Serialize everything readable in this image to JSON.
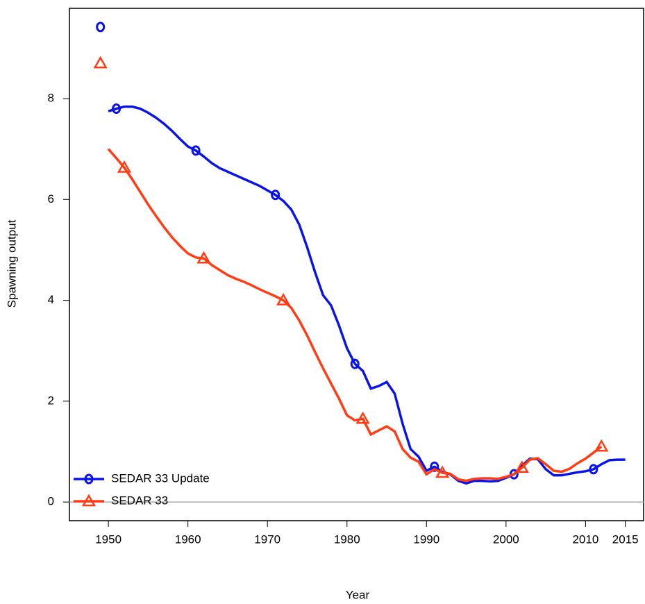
{
  "chart_data": {
    "type": "line",
    "xlabel": "Year",
    "ylabel": "Spawning output",
    "x": [
      1950,
      1951,
      1952,
      1953,
      1954,
      1955,
      1956,
      1957,
      1958,
      1959,
      1960,
      1961,
      1962,
      1963,
      1964,
      1965,
      1966,
      1967,
      1968,
      1969,
      1970,
      1971,
      1972,
      1973,
      1974,
      1975,
      1976,
      1977,
      1978,
      1979,
      1980,
      1981,
      1982,
      1983,
      1984,
      1985,
      1986,
      1987,
      1988,
      1989,
      1990,
      1991,
      1992,
      1993,
      1994,
      1995,
      1996,
      1997,
      1998,
      1999,
      2000,
      2001,
      2002,
      2003,
      2004,
      2005,
      2006,
      2007,
      2008,
      2009,
      2010,
      2011,
      2012,
      2013,
      2014,
      2015
    ],
    "initial_x": 1949,
    "series": [
      {
        "name": "SEDAR 33 Update",
        "color": "#0a14e6",
        "marker": "circle",
        "initial": 9.42,
        "values": [
          7.75,
          7.8,
          7.84,
          7.84,
          7.8,
          7.72,
          7.62,
          7.5,
          7.36,
          7.2,
          7.05,
          6.97,
          6.85,
          6.72,
          6.62,
          6.55,
          6.48,
          6.41,
          6.34,
          6.27,
          6.18,
          6.09,
          5.97,
          5.8,
          5.5,
          5.05,
          4.55,
          4.1,
          3.9,
          3.5,
          3.05,
          2.74,
          2.6,
          2.25,
          2.3,
          2.38,
          2.15,
          1.55,
          1.05,
          0.9,
          0.62,
          0.7,
          0.6,
          0.55,
          0.42,
          0.37,
          0.42,
          0.42,
          0.41,
          0.42,
          0.48,
          0.55,
          0.72,
          0.86,
          0.85,
          0.65,
          0.53,
          0.53,
          0.56,
          0.59,
          0.61,
          0.65,
          0.75,
          0.83,
          0.84,
          0.84
        ]
      },
      {
        "name": "SEDAR 33",
        "color": "#ff3c14",
        "marker": "triangle",
        "initial": 8.7,
        "values": [
          7.0,
          6.82,
          6.63,
          6.4,
          6.15,
          5.9,
          5.67,
          5.45,
          5.25,
          5.08,
          4.93,
          4.85,
          4.83,
          4.7,
          4.6,
          4.5,
          4.43,
          4.37,
          4.3,
          4.22,
          4.15,
          4.08,
          4.0,
          3.85,
          3.6,
          3.3,
          2.97,
          2.65,
          2.35,
          2.05,
          1.72,
          1.62,
          1.65,
          1.34,
          1.42,
          1.5,
          1.4,
          1.05,
          0.88,
          0.8,
          0.55,
          0.65,
          0.58,
          0.56,
          0.45,
          0.42,
          0.46,
          0.47,
          0.47,
          0.46,
          0.5,
          0.55,
          0.68,
          0.84,
          0.87,
          0.75,
          0.62,
          0.6,
          0.66,
          0.77,
          0.86,
          0.98,
          1.1,
          null,
          null,
          null
        ]
      }
    ],
    "xlim": [
      1945.1,
      2017.3
    ],
    "ylim": [
      -0.37,
      9.79
    ],
    "xticks": [
      1950,
      1960,
      1970,
      1980,
      1990,
      2000,
      2010,
      2015
    ],
    "yticks": [
      0,
      2,
      4,
      6,
      8
    ],
    "zero_line": true,
    "legend": "bottom-left"
  }
}
